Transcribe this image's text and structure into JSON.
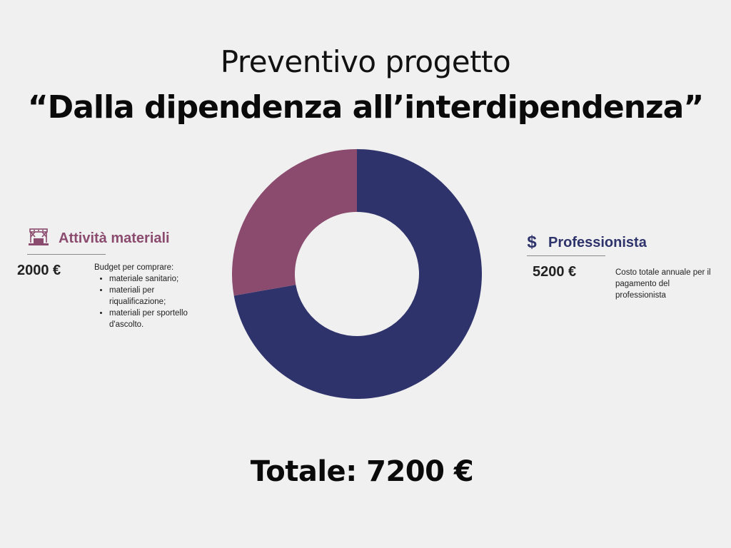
{
  "header": {
    "title": "Preventivo progetto",
    "subtitle": "“Dalla dipendenza all’interdipendenza”"
  },
  "legend": {
    "left": {
      "icon": "stage-icon",
      "title": "Attività materiali",
      "amount": "2000 €",
      "intro": "Budget per comprare:",
      "items": [
        "materiale sanitario;",
        "materiali per riqualificazione;",
        "materiali per sportello d'ascolto."
      ]
    },
    "right": {
      "icon": "dollar-icon",
      "icon_glyph": "$",
      "title": "Professionista",
      "amount": "5200 €",
      "description": "Costo totale  annuale per il pagamento del professionista"
    }
  },
  "footer": {
    "total": "Totale: 7200 €"
  },
  "colors": {
    "background": "#f0f0f0",
    "professionista": "#2f336b",
    "attivita": "#8b4b6e"
  },
  "chart_data": {
    "type": "pie",
    "variant": "donut",
    "title": "Preventivo progetto",
    "subtitle": "“Dalla dipendenza all’interdipendenza”",
    "categories": [
      "Professionista",
      "Attività materiali"
    ],
    "values": [
      5200,
      2000
    ],
    "unit": "€",
    "total": 7200,
    "colors": [
      "#2f336b",
      "#8b4b6e"
    ],
    "start": "top",
    "direction": "clockwise",
    "legend": "left-right"
  }
}
